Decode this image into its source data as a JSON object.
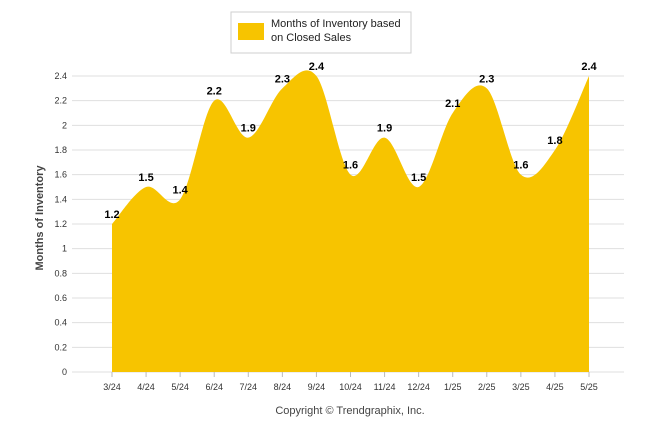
{
  "chart_data": {
    "type": "area",
    "title": "",
    "xlabel": "",
    "ylabel": "Months of Inventory",
    "legend_position": "top-center",
    "grid": true,
    "ylim": [
      0,
      2.4
    ],
    "yticks": [
      0,
      0.2,
      0.4,
      0.6,
      0.8,
      1,
      1.2,
      1.4,
      1.6,
      1.8,
      2,
      2.2,
      2.4
    ],
    "categories": [
      "3/24",
      "4/24",
      "5/24",
      "6/24",
      "7/24",
      "8/24",
      "9/24",
      "10/24",
      "11/24",
      "12/24",
      "1/25",
      "2/25",
      "3/25",
      "4/25",
      "5/25"
    ],
    "series": [
      {
        "name": "Months of Inventory based on Closed Sales",
        "values": [
          1.2,
          1.5,
          1.4,
          2.2,
          1.9,
          2.3,
          2.4,
          1.6,
          1.9,
          1.5,
          2.1,
          2.3,
          1.6,
          1.8,
          2.4
        ],
        "color": "#f7c400"
      }
    ],
    "legend_label_lines": [
      "Months of Inventory based",
      "on Closed Sales"
    ],
    "data_labels": [
      "1.2",
      "1.5",
      "1.4",
      "2.2",
      "1.9",
      "2.3",
      "2.4",
      "1.6",
      "1.9",
      "1.5",
      "2.1",
      "2.3",
      "1.6",
      "1.8",
      "2.4"
    ],
    "footer": "Copyright © Trendgraphix, Inc."
  },
  "colors": {
    "area_fill": "#f7c400",
    "grid": "#dfdfdf",
    "axis_text": "#333333",
    "label_text": "#000000"
  }
}
